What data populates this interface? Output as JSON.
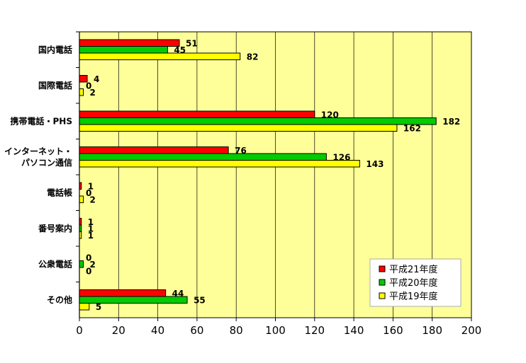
{
  "chart_data": {
    "type": "bar",
    "orientation": "horizontal",
    "categories": [
      "国内電話",
      "国際電話",
      "携帯電話・PHS",
      [
        "インターネット・",
        "パソコン通信"
      ],
      "電話帳",
      "番号案内",
      "公衆電話",
      "その他"
    ],
    "series": [
      {
        "name": "平成21年度",
        "color": "#ff0000",
        "values": [
          51,
          4,
          120,
          76,
          1,
          1,
          0,
          44
        ]
      },
      {
        "name": "平成20年度",
        "color": "#00cc00",
        "values": [
          45,
          0,
          182,
          126,
          0,
          1,
          2,
          55
        ]
      },
      {
        "name": "平成19年度",
        "color": "#ffff00",
        "values": [
          82,
          2,
          162,
          143,
          2,
          1,
          0,
          5
        ]
      }
    ],
    "xlim": [
      0,
      200
    ],
    "xticks": [
      "0",
      "20",
      "40",
      "60",
      "80",
      "100",
      "120",
      "140",
      "160",
      "180",
      "200"
    ],
    "grid": true,
    "legend_position": "bottom-right",
    "plot_background": "#ffff99"
  }
}
